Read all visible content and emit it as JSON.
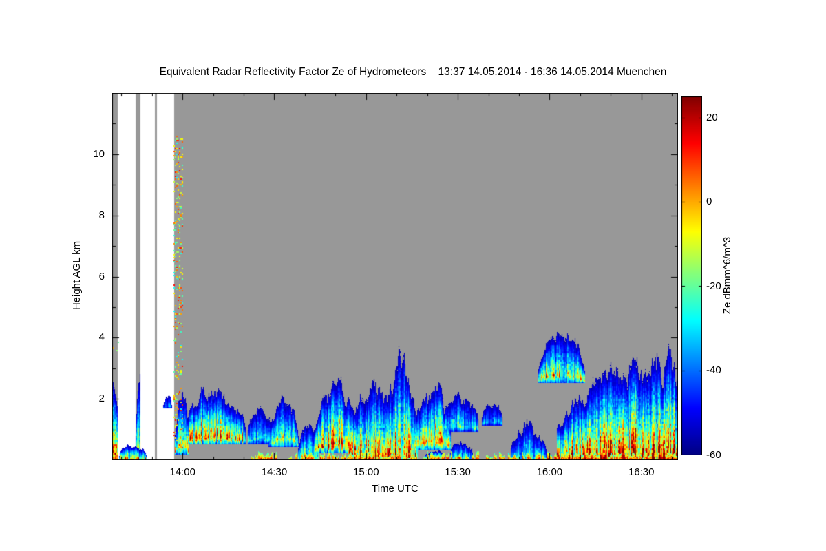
{
  "window": {
    "background": "#ffffff"
  },
  "chart_data": {
    "type": "heatmap",
    "title": "Equivalent Radar Reflectivity Factor Ze of Hydrometeors    13:37 14.05.2014 - 16:36 14.05.2014 Muenchen",
    "xlabel": "Time UTC",
    "ylabel": "Height AGL km",
    "location": "Muenchen",
    "time_start": "13:37 14.05.2014",
    "time_end": "16:36 14.05.2014",
    "x_range_hours": [
      13.6167,
      16.7
    ],
    "y_range_km": [
      0,
      12
    ],
    "x_ticks": [
      {
        "label": "14:00",
        "t": 14.0
      },
      {
        "label": "14:30",
        "t": 14.5
      },
      {
        "label": "15:00",
        "t": 15.0
      },
      {
        "label": "15:30",
        "t": 15.5
      },
      {
        "label": "16:00",
        "t": 16.0
      },
      {
        "label": "16:30",
        "t": 16.5
      }
    ],
    "y_ticks": [
      {
        "label": "2",
        "h": 2
      },
      {
        "label": "4",
        "h": 4
      },
      {
        "label": "6",
        "h": 6
      },
      {
        "label": "8",
        "h": 8
      },
      {
        "label": "10",
        "h": 10
      }
    ],
    "x_minor_step_hours": 0.1666667,
    "y_minor_step_km": 1,
    "grid": false,
    "colorbar": {
      "label": "Ze dBmm^6/m^3",
      "min": -60,
      "max": 25,
      "ticks": [
        {
          "label": "20",
          "v": 20
        },
        {
          "label": "0",
          "v": 0
        },
        {
          "label": "-20",
          "v": -20
        },
        {
          "label": "-40",
          "v": -40
        },
        {
          "label": "-60",
          "v": -60
        }
      ],
      "colormap": [
        [
          -60,
          "#000082"
        ],
        [
          -49,
          "#0000ff"
        ],
        [
          -28,
          "#00ffff"
        ],
        [
          -7,
          "#ffff00"
        ],
        [
          14,
          "#ff0000"
        ],
        [
          25,
          "#820000"
        ]
      ]
    },
    "no_data_color": "#989898",
    "missing_color": "#ffffff",
    "missing_intervals_hours": [
      [
        13.648,
        13.742
      ],
      [
        13.772,
        13.845
      ],
      [
        13.862,
        13.952
      ]
    ],
    "features": [
      {
        "t0": 13.617,
        "t1": 13.662,
        "base": 0,
        "top": 3.3,
        "core": 13,
        "seed": 1,
        "edge": "left",
        "over_gap": false
      },
      {
        "t0": 13.746,
        "t1": 13.788,
        "base": 0,
        "top": 3.55,
        "core": 21,
        "seed": 2,
        "over_gap": false
      },
      {
        "t0": 13.655,
        "t1": 13.8,
        "base": 0,
        "top": 0.75,
        "core": 17,
        "seed": 3,
        "over_gap": true
      },
      {
        "t0": 13.895,
        "t1": 13.94,
        "base": 1.7,
        "top": 2.35,
        "core": -33,
        "seed": 4,
        "over_gap": true
      },
      {
        "t0": 13.958,
        "t1": 14.03,
        "base": 0.2,
        "top": 3.05,
        "core": 9,
        "seed": 5,
        "over_gap": false
      },
      {
        "t0": 14.02,
        "t1": 14.34,
        "base": 0.55,
        "top": 2.95,
        "core": 21,
        "seed": 6,
        "over_gap": false
      },
      {
        "t0": 14.355,
        "t1": 14.5,
        "base": 0.55,
        "top": 2.35,
        "core": -17,
        "seed": 7,
        "over_gap": false
      },
      {
        "t0": 14.47,
        "t1": 14.63,
        "base": 0.45,
        "top": 2.55,
        "core": -7,
        "seed": 8,
        "over_gap": false
      },
      {
        "t0": 14.63,
        "t1": 14.74,
        "base": 0.05,
        "top": 1.7,
        "core": -4,
        "seed": 9,
        "over_gap": false
      },
      {
        "t0": 14.72,
        "t1": 14.94,
        "base": 0.25,
        "top": 3.35,
        "core": 20,
        "seed": 10,
        "over_gap": false
      },
      {
        "t0": 14.9,
        "t1": 15.14,
        "base": 0,
        "top": 3.5,
        "core": 24,
        "seed": 11,
        "over_gap": false
      },
      {
        "t0": 15.1,
        "t1": 15.28,
        "base": 0,
        "top": 4.25,
        "core": 19,
        "seed": 12,
        "over_gap": false
      },
      {
        "t0": 15.25,
        "t1": 15.46,
        "base": 0.35,
        "top": 3.05,
        "core": 12,
        "seed": 13,
        "over_gap": false
      },
      {
        "t0": 15.42,
        "t1": 15.61,
        "base": 0.95,
        "top": 2.7,
        "core": -14,
        "seed": 14,
        "over_gap": false
      },
      {
        "t0": 15.46,
        "t1": 15.58,
        "base": 0,
        "top": 0.95,
        "core": -9,
        "seed": 15,
        "over_gap": false
      },
      {
        "t0": 15.63,
        "t1": 15.74,
        "base": 1.15,
        "top": 2.25,
        "core": -27,
        "seed": 16,
        "over_gap": false
      },
      {
        "t0": 15.79,
        "t1": 15.98,
        "base": 0,
        "top": 1.75,
        "core": -19,
        "seed": 17,
        "over_gap": false
      },
      {
        "t0": 15.94,
        "t1": 16.19,
        "base": 2.55,
        "top": 4.6,
        "core": 7,
        "seed": 18,
        "over_gap": false
      },
      {
        "t0": 16.04,
        "t1": 16.7,
        "base": 0,
        "top": 4.35,
        "core": 24,
        "seed": 19,
        "edge": "right",
        "over_gap": false
      },
      {
        "t0": 16.1,
        "t1": 16.33,
        "base": 0,
        "top": 0.7,
        "core": 25,
        "seed": 20,
        "over_gap": false
      },
      {
        "t0": 16.52,
        "t1": 16.7,
        "base": 0,
        "top": 1.25,
        "core": 22,
        "seed": 21,
        "edge": "right",
        "over_gap": false
      },
      {
        "t0": 15.32,
        "t1": 15.43,
        "base": 0,
        "top": 0.5,
        "core": 14,
        "seed": 22,
        "over_gap": false
      }
    ],
    "surface_line": {
      "t0": 14.33,
      "t1": 16.7,
      "max_thickness_km": 0.3,
      "core_min": 6,
      "core_max": 25,
      "seed": 30
    },
    "speckles": [
      {
        "t0": 13.952,
        "t1": 13.995,
        "base": 0.3,
        "top": 10.6,
        "density": 0.16,
        "vmin": -28,
        "vmax": 14,
        "seed": 40
      },
      {
        "t0": 13.6,
        "t1": 13.65,
        "base": 3.3,
        "top": 4.1,
        "density": 0.05,
        "vmin": -20,
        "vmax": 0,
        "seed": 41
      }
    ]
  }
}
